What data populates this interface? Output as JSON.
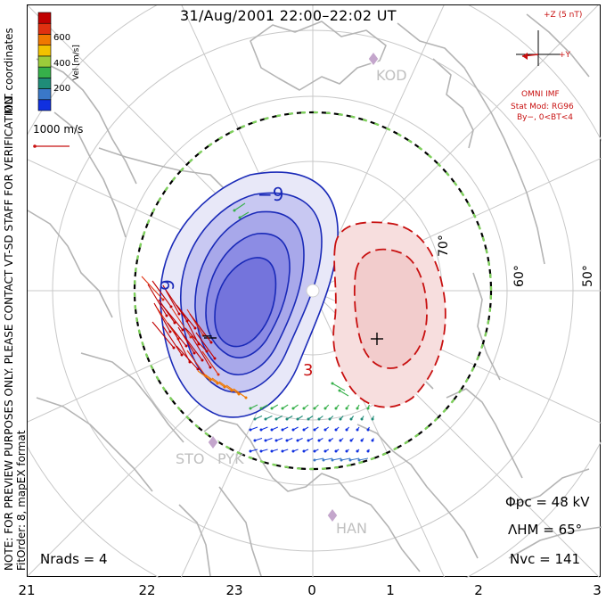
{
  "title": "31/Aug/2001 22:00–22:02 UT",
  "notes": {
    "preview": "NOTE: FOR PREVIEW PURPOSES ONLY. PLEASE CONTACT VT-SD STAFF FOR VERIFICATION.",
    "fitorder": "FitOrder: 8, mapEX format"
  },
  "color_scale": {
    "label": "Vel [m/s]",
    "ticks": [
      "600",
      "400",
      "200"
    ],
    "colors": [
      "#1030e0",
      "#3a78c8",
      "#1f8c78",
      "#36b04a",
      "#9ccc3a",
      "#f2c200",
      "#f07800",
      "#e03010",
      "#c00000"
    ]
  },
  "coords_label": "MLT coordinates",
  "reference_vector": "1000 m/s",
  "imf": {
    "z_label": "+Z (5 nT)",
    "y_label": "+Y",
    "omni": "OMNI IMF",
    "stat_mod": "Stat Mod: RG96",
    "condition": "By−, 0<BT<4"
  },
  "lat_labels": [
    "70°",
    "60°",
    "50°"
  ],
  "contour_labels": [
    "−9",
    "9",
    "−",
    "3"
  ],
  "stations": [
    "KOD",
    "STO",
    "PYK",
    "HAN"
  ],
  "stats": {
    "phi_pc": "Φpc = 48 kV",
    "lambda_hm": "ΛHM = 65°",
    "n_vc": "Nvc = 141",
    "n_rads": "Nrads = 4"
  },
  "mlt_ticks": [
    "21",
    "22",
    "23",
    "0",
    "1",
    "2",
    "3"
  ],
  "accent_colors": {
    "negative_cell": "#1a2ab8",
    "positive_cell": "#c81010",
    "boundary_dash": "#7ed35a",
    "coast": "#b4b4b4",
    "grid": "#c8c8c8"
  }
}
